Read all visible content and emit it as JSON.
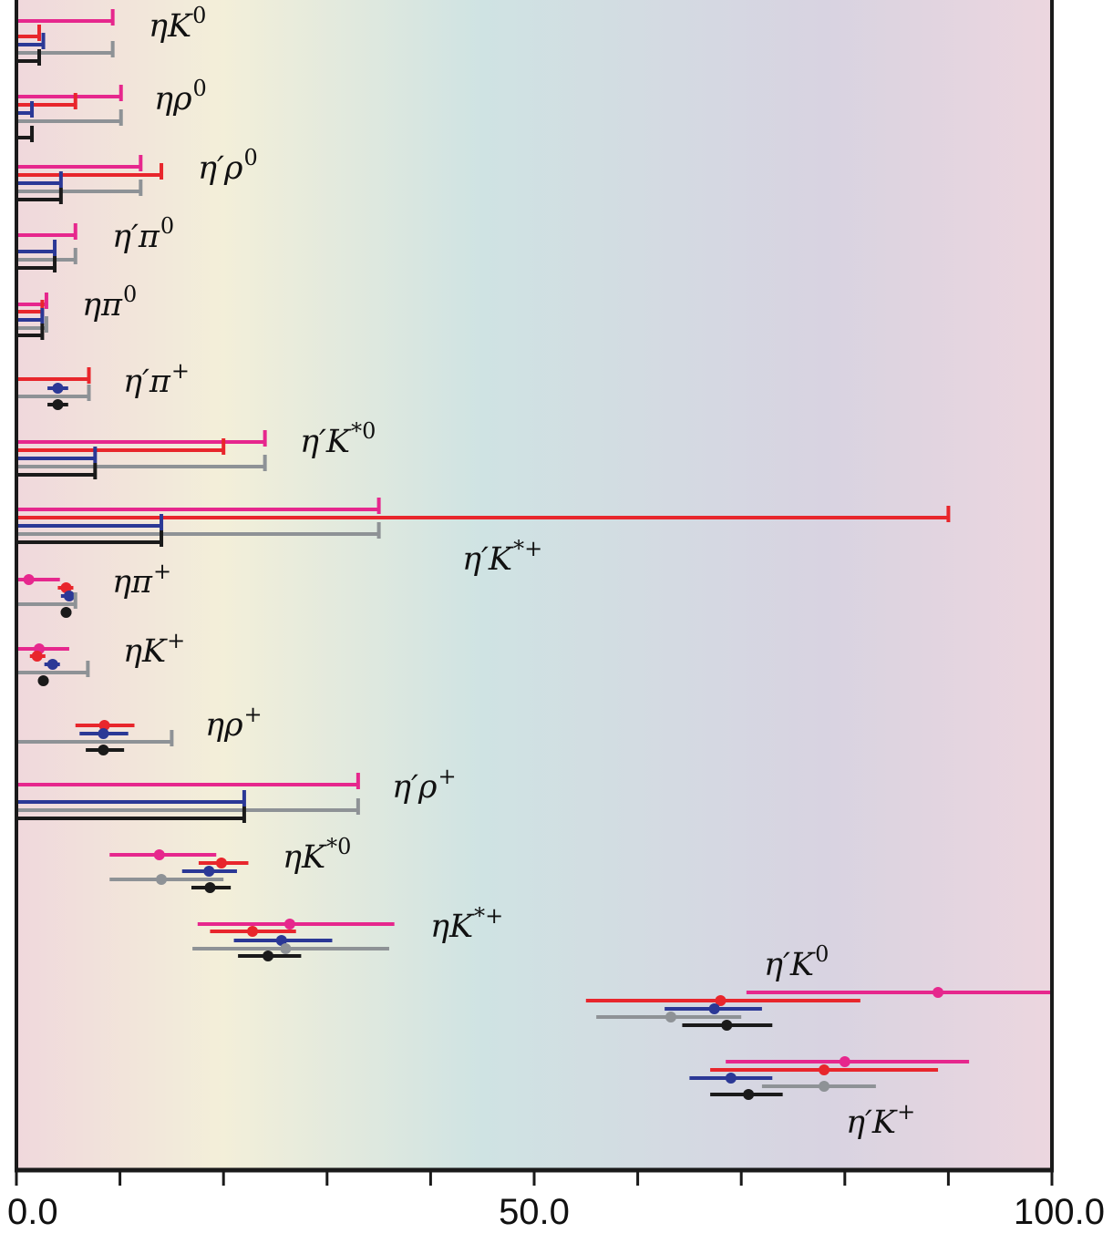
{
  "chart_data": {
    "type": "errorbar",
    "title": "",
    "xlabel": "",
    "ylabel": "",
    "xlim": [
      0,
      100
    ],
    "x_ticks": [
      0,
      10,
      20,
      30,
      40,
      50,
      60,
      70,
      80,
      90,
      100
    ],
    "x_tick_labels": [
      {
        "value": 0,
        "label": "0.0"
      },
      {
        "value": 50,
        "label": "50.0"
      },
      {
        "value": 100,
        "label": "100.0"
      }
    ],
    "series_colors": [
      "#e6278d",
      "#e8262c",
      "#2b3896",
      "#8e9296",
      "#1a1a1a"
    ],
    "background_gradient": [
      "#f0d8dc",
      "#f3efd9",
      "#cfe3e3",
      "#d8d3e1",
      "#ecd6df"
    ],
    "groups": [
      {
        "label": "ηK⁰",
        "base": "ηK",
        "sup": "0",
        "measurements": [
          {
            "type": "limit",
            "value": 9.3
          },
          {
            "type": "limit",
            "value": 2.2
          },
          {
            "type": "limit",
            "value": 2.6
          },
          {
            "type": "limit",
            "value": 9.3
          },
          {
            "type": "limit",
            "value": 2.2
          }
        ]
      },
      {
        "label": "ηρ⁰",
        "base": "ηρ",
        "sup": "0",
        "measurements": [
          {
            "type": "limit",
            "value": 10.1
          },
          {
            "type": "limit",
            "value": 5.7
          },
          {
            "type": "limit",
            "value": 1.5
          },
          {
            "type": "limit",
            "value": 10.1
          },
          {
            "type": "limit",
            "value": 1.5
          }
        ]
      },
      {
        "label": "η′ρ⁰",
        "base": "η′ρ",
        "sup": "0",
        "measurements": [
          {
            "type": "limit",
            "value": 12.0
          },
          {
            "type": "limit",
            "value": 14.0
          },
          {
            "type": "limit",
            "value": 4.3
          },
          {
            "type": "limit",
            "value": 12.0
          },
          {
            "type": "limit",
            "value": 4.3
          }
        ]
      },
      {
        "label": "η′π⁰",
        "base": "η′π",
        "sup": "0",
        "measurements": [
          {
            "type": "limit",
            "value": 5.7
          },
          {
            "type": "limit",
            "value": 3.7
          },
          {
            "type": "limit",
            "value": 5.7
          },
          {
            "type": "limit",
            "value": 3.7
          }
        ]
      },
      {
        "label": "ηπ⁰",
        "base": "ηπ",
        "sup": "0",
        "measurements": [
          {
            "type": "limit",
            "value": 2.9
          },
          {
            "type": "limit",
            "value": 2.5
          },
          {
            "type": "limit",
            "value": 2.5
          },
          {
            "type": "limit",
            "value": 2.9
          },
          {
            "type": "limit",
            "value": 2.5
          }
        ]
      },
      {
        "label": "η′π⁺",
        "base": "η′π",
        "sup": "+",
        "measurements": [
          {
            "type": "limit",
            "value": 7.0
          },
          {
            "type": "point",
            "value": 4.0,
            "lo": 3.0,
            "hi": 5.0
          },
          {
            "type": "limit",
            "value": 7.0
          },
          {
            "type": "point",
            "value": 4.0,
            "lo": 3.0,
            "hi": 5.0
          }
        ]
      },
      {
        "label": "η′K*⁰",
        "base": "η′K",
        "sup": "*0",
        "measurements": [
          {
            "type": "limit",
            "value": 24.0
          },
          {
            "type": "limit",
            "value": 20.0
          },
          {
            "type": "limit",
            "value": 7.6
          },
          {
            "type": "limit",
            "value": 24.0
          },
          {
            "type": "limit",
            "value": 7.6
          }
        ]
      },
      {
        "label": "η′K*⁺",
        "base": "η′K",
        "sup": "*+",
        "measurements": [
          {
            "type": "limit",
            "value": 35.0
          },
          {
            "type": "limit",
            "value": 90.0
          },
          {
            "type": "limit",
            "value": 14.0
          },
          {
            "type": "limit",
            "value": 35.0
          },
          {
            "type": "limit",
            "value": 14.0
          }
        ]
      },
      {
        "label": "ηπ⁺",
        "base": "ηπ",
        "sup": "+",
        "measurements": [
          {
            "type": "point",
            "value": 1.2,
            "lo": 0.0,
            "hi": 4.2
          },
          {
            "type": "point",
            "value": 4.8,
            "lo": 4.0,
            "hi": 5.5
          },
          {
            "type": "point",
            "value": 5.1,
            "lo": 4.3,
            "hi": 5.8
          },
          {
            "type": "limit",
            "value": 5.7
          },
          {
            "type": "point",
            "value": 4.8,
            "lo": 4.3,
            "hi": 5.3
          }
        ]
      },
      {
        "label": "ηK⁺",
        "base": "ηK",
        "sup": "+",
        "measurements": [
          {
            "type": "point",
            "value": 2.2,
            "lo": 0.0,
            "hi": 5.1
          },
          {
            "type": "point",
            "value": 2.0,
            "lo": 1.3,
            "hi": 2.8
          },
          {
            "type": "point",
            "value": 3.5,
            "lo": 2.7,
            "hi": 4.2
          },
          {
            "type": "limit",
            "value": 6.9
          },
          {
            "type": "point",
            "value": 2.6,
            "lo": 2.1,
            "hi": 3.1
          }
        ]
      },
      {
        "label": "ηρ⁺",
        "base": "ηρ",
        "sup": "+",
        "measurements": [
          {
            "type": "point",
            "value": 8.5,
            "lo": 5.7,
            "hi": 11.4
          },
          {
            "type": "point",
            "value": 8.4,
            "lo": 6.1,
            "hi": 10.8
          },
          {
            "type": "limit",
            "value": 15.0
          },
          {
            "type": "point",
            "value": 8.4,
            "lo": 6.7,
            "hi": 10.4
          }
        ]
      },
      {
        "label": "η′ρ⁺",
        "base": "η′ρ",
        "sup": "+",
        "measurements": [
          {
            "type": "limit",
            "value": 33.0
          },
          {
            "type": "limit",
            "value": 22.0
          },
          {
            "type": "limit",
            "value": 33.0
          },
          {
            "type": "limit",
            "value": 22.0
          }
        ]
      },
      {
        "label": "ηK*⁰",
        "base": "ηK",
        "sup": "*0",
        "measurements": [
          {
            "type": "point",
            "value": 13.8,
            "lo": 9.0,
            "hi": 19.3
          },
          {
            "type": "point",
            "value": 19.8,
            "lo": 17.6,
            "hi": 22.4
          },
          {
            "type": "point",
            "value": 18.6,
            "lo": 16.0,
            "hi": 21.3
          },
          {
            "type": "point",
            "value": 14.0,
            "lo": 9.0,
            "hi": 20.0
          },
          {
            "type": "point",
            "value": 18.7,
            "lo": 16.9,
            "hi": 20.7
          }
        ]
      },
      {
        "label": "ηK*⁺",
        "base": "ηK",
        "sup": "*+",
        "measurements": [
          {
            "type": "point",
            "value": 26.4,
            "lo": 17.5,
            "hi": 36.5
          },
          {
            "type": "point",
            "value": 22.8,
            "lo": 18.7,
            "hi": 27.0
          },
          {
            "type": "point",
            "value": 25.6,
            "lo": 21.0,
            "hi": 30.5
          },
          {
            "type": "point",
            "value": 26.0,
            "lo": 17.0,
            "hi": 36.0
          },
          {
            "type": "point",
            "value": 24.3,
            "lo": 21.4,
            "hi": 27.5
          }
        ]
      },
      {
        "label": "η′K⁰",
        "base": "η′K",
        "sup": "0",
        "measurements": [
          {
            "type": "point",
            "value": 89.0,
            "lo": 70.5,
            "hi": 100.0
          },
          {
            "type": "point",
            "value": 68.0,
            "lo": 55.0,
            "hi": 81.5
          },
          {
            "type": "point",
            "value": 67.4,
            "lo": 62.6,
            "hi": 72.0
          },
          {
            "type": "point",
            "value": 63.2,
            "lo": 56.0,
            "hi": 70.0
          },
          {
            "type": "point",
            "value": 68.6,
            "lo": 64.3,
            "hi": 73.0
          }
        ]
      },
      {
        "label": "η′K⁺",
        "base": "η′K",
        "sup": "+",
        "measurements": [
          {
            "type": "point",
            "value": 80.0,
            "lo": 68.5,
            "hi": 92.0
          },
          {
            "type": "point",
            "value": 78.0,
            "lo": 67.0,
            "hi": 89.0
          },
          {
            "type": "point",
            "value": 69.0,
            "lo": 65.0,
            "hi": 73.0
          },
          {
            "type": "point",
            "value": 78.0,
            "lo": 72.0,
            "hi": 83.0
          },
          {
            "type": "point",
            "value": 70.7,
            "lo": 67.0,
            "hi": 74.0
          }
        ]
      }
    ]
  }
}
